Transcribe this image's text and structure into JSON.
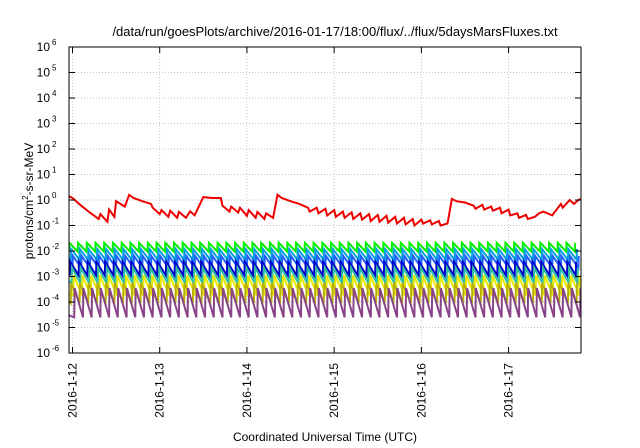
{
  "chart_data": {
    "type": "line",
    "title": "/data/run/goesPlots/archive/2016-01-17/18:00/flux/../flux/5daysMarsFluxes.txt",
    "xlabel": "Coordinated Universal Time (UTC)",
    "ylabel_parts": [
      "protons/cm",
      "2",
      "-s-sr-MeV"
    ],
    "yscale": "log",
    "ylim": [
      1e-06,
      1000000.0
    ],
    "xlim": [
      -0.04,
      5.83
    ],
    "grid": true,
    "legend": "none",
    "x_ticks": [
      {
        "value": 0,
        "label": "2016-1-12"
      },
      {
        "value": 1,
        "label": "2016-1-13"
      },
      {
        "value": 2,
        "label": "2016-1-14"
      },
      {
        "value": 3,
        "label": "2016-1-15"
      },
      {
        "value": 4,
        "label": "2016-1-16"
      },
      {
        "value": 5,
        "label": "2016-1-17"
      }
    ],
    "y_ticks": [
      {
        "value": 1e-06,
        "base": "10",
        "exp": "-6"
      },
      {
        "value": 1e-05,
        "base": "10",
        "exp": "-5"
      },
      {
        "value": 0.0001,
        "base": "10",
        "exp": "-4"
      },
      {
        "value": 0.001,
        "base": "10",
        "exp": "-3"
      },
      {
        "value": 0.01,
        "base": "10",
        "exp": "-2"
      },
      {
        "value": 0.1,
        "base": "10",
        "exp": "-1"
      },
      {
        "value": 1,
        "base": "10",
        "exp": "0"
      },
      {
        "value": 10,
        "base": "10",
        "exp": "1"
      },
      {
        "value": 100,
        "base": "10",
        "exp": "2"
      },
      {
        "value": 1000,
        "base": "10",
        "exp": "3"
      },
      {
        "value": 10000,
        "base": "10",
        "exp": "4"
      },
      {
        "value": 100000,
        "base": "10",
        "exp": "5"
      },
      {
        "value": 1000000,
        "base": "10",
        "exp": "6"
      }
    ],
    "series": [
      {
        "color": "#ee0000",
        "x": [
          -0.04,
          0.0,
          0.1,
          0.2,
          0.3,
          0.32,
          0.4,
          0.42,
          0.48,
          0.5,
          0.6,
          0.65,
          0.7,
          0.8,
          0.9,
          0.92,
          1.0,
          1.02,
          1.1,
          1.12,
          1.2,
          1.22,
          1.3,
          1.35,
          1.4,
          1.5,
          1.6,
          1.7,
          1.72,
          1.8,
          1.82,
          1.9,
          1.92,
          2.0,
          2.02,
          2.1,
          2.12,
          2.2,
          2.22,
          2.3,
          2.35,
          2.4,
          2.5,
          2.6,
          2.7,
          2.72,
          2.8,
          2.82,
          2.9,
          2.92,
          3.0,
          3.02,
          3.1,
          3.12,
          3.2,
          3.22,
          3.3,
          3.32,
          3.4,
          3.42,
          3.5,
          3.52,
          3.6,
          3.62,
          3.7,
          3.72,
          3.8,
          3.82,
          3.9,
          3.92,
          4.0,
          4.02,
          4.1,
          4.12,
          4.2,
          4.22,
          4.3,
          4.35,
          4.4,
          4.5,
          4.6,
          4.62,
          4.7,
          4.72,
          4.8,
          4.82,
          4.9,
          4.92,
          5.0,
          5.02,
          5.1,
          5.12,
          5.2,
          5.22,
          5.3,
          5.35,
          5.4,
          5.5,
          5.6,
          5.62,
          5.7,
          5.75,
          5.8,
          5.83
        ],
        "y": [
          1.4,
          1.2,
          0.6,
          0.32,
          0.18,
          0.28,
          0.14,
          0.42,
          0.22,
          0.9,
          0.55,
          1.6,
          1.2,
          0.9,
          0.7,
          0.5,
          0.28,
          0.4,
          0.22,
          0.38,
          0.2,
          0.34,
          0.2,
          0.36,
          0.25,
          1.3,
          1.2,
          1.2,
          0.6,
          0.35,
          0.55,
          0.32,
          0.5,
          0.24,
          0.4,
          0.2,
          0.34,
          0.18,
          0.3,
          0.2,
          1.6,
          1.2,
          0.9,
          0.7,
          0.5,
          0.35,
          0.5,
          0.3,
          0.45,
          0.25,
          0.4,
          0.22,
          0.35,
          0.2,
          0.33,
          0.18,
          0.3,
          0.17,
          0.28,
          0.15,
          0.26,
          0.14,
          0.24,
          0.13,
          0.22,
          0.12,
          0.2,
          0.11,
          0.18,
          0.1,
          0.17,
          0.12,
          0.16,
          0.11,
          0.15,
          0.1,
          0.12,
          1.1,
          0.9,
          0.8,
          0.6,
          0.45,
          0.65,
          0.42,
          0.55,
          0.38,
          0.5,
          0.3,
          0.42,
          0.25,
          0.3,
          0.2,
          0.26,
          0.18,
          0.22,
          0.3,
          0.35,
          0.25,
          0.7,
          0.5,
          1.0,
          0.7,
          1.0,
          1.1
        ]
      },
      {
        "color": "#00ee00",
        "sawtooth": {
          "top": 0.021,
          "bottom": 0.0095,
          "period": 0.1,
          "start": 0.0
        }
      },
      {
        "color": "#00a0e0",
        "sawtooth": {
          "top": 0.012,
          "bottom": 0.0045,
          "period": 0.1,
          "start": 0.02
        }
      },
      {
        "color": "#2060ff",
        "sawtooth": {
          "top": 0.0065,
          "bottom": 0.0022,
          "period": 0.1,
          "start": 0.04
        }
      },
      {
        "color": "#0000cc",
        "sawtooth": {
          "top": 0.0038,
          "bottom": 0.0011,
          "period": 0.1,
          "start": 0.01
        }
      },
      {
        "color": "#30c0a0",
        "sawtooth": {
          "top": 0.0022,
          "bottom": 0.00055,
          "period": 0.1,
          "start": 0.03
        }
      },
      {
        "color": "#e8e800",
        "sawtooth": {
          "top": 0.0011,
          "bottom": 0.00018,
          "period": 0.1,
          "start": 0.05
        }
      },
      {
        "color": "#b8b000",
        "sawtooth": {
          "top": 0.00055,
          "bottom": 9e-05,
          "period": 0.1,
          "start": 0.02
        }
      },
      {
        "color": "#884488",
        "sawtooth": {
          "top": 0.00035,
          "bottom": 2.5e-05,
          "period": 0.1,
          "start": 0.06
        }
      }
    ]
  }
}
